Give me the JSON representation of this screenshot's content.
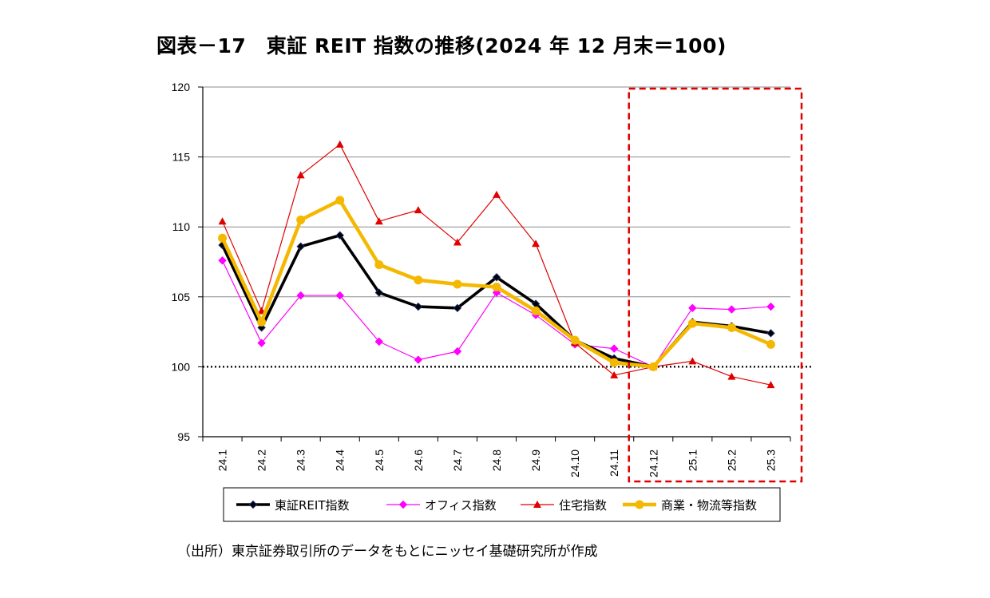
{
  "title": "図表－17　東証 REIT 指数の推移(2024 年 12 月末＝100)",
  "source": "（出所）東京証券取引所のデータをもとにニッセイ基礎研究所が作成",
  "chart_data": {
    "type": "line",
    "title": "図表－17　東証 REIT 指数の推移(2024 年 12 月末＝100)",
    "categories": [
      "24.1",
      "24.2",
      "24.3",
      "24.4",
      "24.5",
      "24.6",
      "24.7",
      "24.8",
      "24.9",
      "24.10",
      "24.11",
      "24.12",
      "25.1",
      "25.2",
      "25.3"
    ],
    "ylim": [
      95,
      120
    ],
    "yticks": [
      "95",
      "100",
      "105",
      "110",
      "115",
      "120"
    ],
    "reference_line": 100,
    "highlight_range": [
      "24.12",
      "25.3"
    ],
    "series": [
      {
        "name": "東証REIT指数",
        "color": "#000000",
        "marker": "diamond",
        "values": [
          108.7,
          102.8,
          108.6,
          109.4,
          105.3,
          104.3,
          104.2,
          106.4,
          104.5,
          101.9,
          100.6,
          100.0,
          103.2,
          102.9,
          102.4
        ]
      },
      {
        "name": "オフィス指数",
        "color": "#ff00ff",
        "marker": "diamond",
        "values": [
          107.6,
          101.7,
          105.1,
          105.1,
          101.8,
          100.5,
          101.1,
          105.3,
          103.7,
          101.6,
          101.3,
          100.0,
          104.2,
          104.1,
          104.3
        ]
      },
      {
        "name": "住宅指数",
        "color": "#e00000",
        "marker": "triangle",
        "values": [
          110.4,
          104.0,
          113.7,
          115.9,
          110.4,
          111.2,
          108.9,
          112.3,
          108.8,
          101.7,
          99.4,
          100.0,
          100.4,
          99.3,
          98.7
        ]
      },
      {
        "name": "商業・物流等指数",
        "color": "#f5b800",
        "marker": "circle",
        "values": [
          109.2,
          103.2,
          110.5,
          111.9,
          107.3,
          106.2,
          105.9,
          105.7,
          104.0,
          101.9,
          100.3,
          100.0,
          103.1,
          102.8,
          101.6
        ]
      }
    ]
  }
}
